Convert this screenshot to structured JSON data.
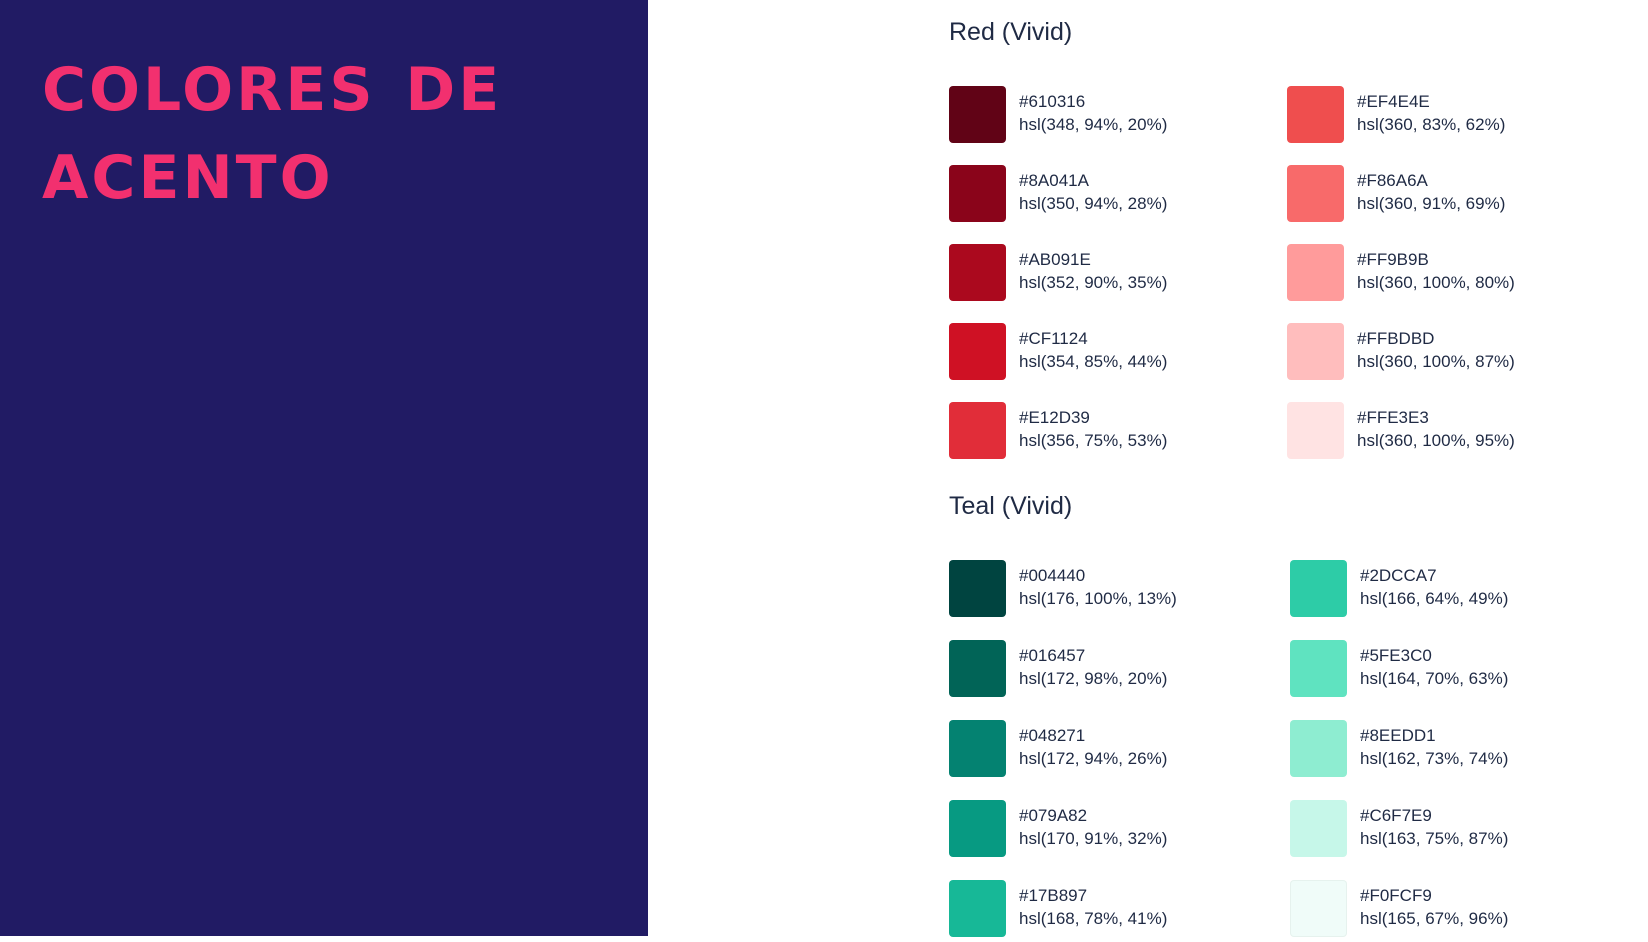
{
  "title": "COLORES DE ACENTO",
  "sections": [
    {
      "title": "Red (Vivid)",
      "left": [
        {
          "hex": "#610316",
          "hsl": "hsl(348, 94%, 20%)",
          "color": "#610316"
        },
        {
          "hex": "#8A041A",
          "hsl": "hsl(350, 94%, 28%)",
          "color": "#8A041A"
        },
        {
          "hex": "#AB091E",
          "hsl": "hsl(352, 90%, 35%)",
          "color": "#AB091E"
        },
        {
          "hex": "#CF1124",
          "hsl": "hsl(354, 85%, 44%)",
          "color": "#CF1124"
        },
        {
          "hex": "#E12D39",
          "hsl": "hsl(356, 75%, 53%)",
          "color": "#E12D39"
        }
      ],
      "right": [
        {
          "hex": "#EF4E4E",
          "hsl": "hsl(360, 83%, 62%)",
          "color": "#EF4E4E"
        },
        {
          "hex": "#F86A6A",
          "hsl": "hsl(360, 91%, 69%)",
          "color": "#F86A6A"
        },
        {
          "hex": "#FF9B9B",
          "hsl": "hsl(360, 100%, 80%)",
          "color": "#FF9B9B"
        },
        {
          "hex": "#FFBDBD",
          "hsl": "hsl(360, 100%, 87%)",
          "color": "#FFBDBD"
        },
        {
          "hex": "#FFE3E3",
          "hsl": "hsl(360, 100%, 95%)",
          "color": "#FFE3E3"
        }
      ]
    },
    {
      "title": "Teal (Vivid)",
      "left": [
        {
          "hex": "#004440",
          "hsl": "hsl(176, 100%, 13%)",
          "color": "#004440"
        },
        {
          "hex": "#016457",
          "hsl": "hsl(172, 98%, 20%)",
          "color": "#016457"
        },
        {
          "hex": "#048271",
          "hsl": "hsl(172, 94%, 26%)",
          "color": "#048271"
        },
        {
          "hex": "#079A82",
          "hsl": "hsl(170, 91%, 32%)",
          "color": "#079A82"
        },
        {
          "hex": "#17B897",
          "hsl": "hsl(168, 78%, 41%)",
          "color": "#17B897"
        }
      ],
      "right": [
        {
          "hex": "#2DCCA7",
          "hsl": "hsl(166, 64%, 49%)",
          "color": "#2DCCA7"
        },
        {
          "hex": "#5FE3C0",
          "hsl": "hsl(164, 70%, 63%)",
          "color": "#5FE3C0"
        },
        {
          "hex": "#8EEDD1",
          "hsl": "hsl(162, 73%, 74%)",
          "color": "#8EEDD1"
        },
        {
          "hex": "#C6F7E9",
          "hsl": "hsl(163, 75%, 87%)",
          "color": "#C6F7E9"
        },
        {
          "hex": "#F0FCF9",
          "hsl": "hsl(165, 67%, 96%)",
          "color": "#F0FCF9"
        }
      ]
    }
  ]
}
